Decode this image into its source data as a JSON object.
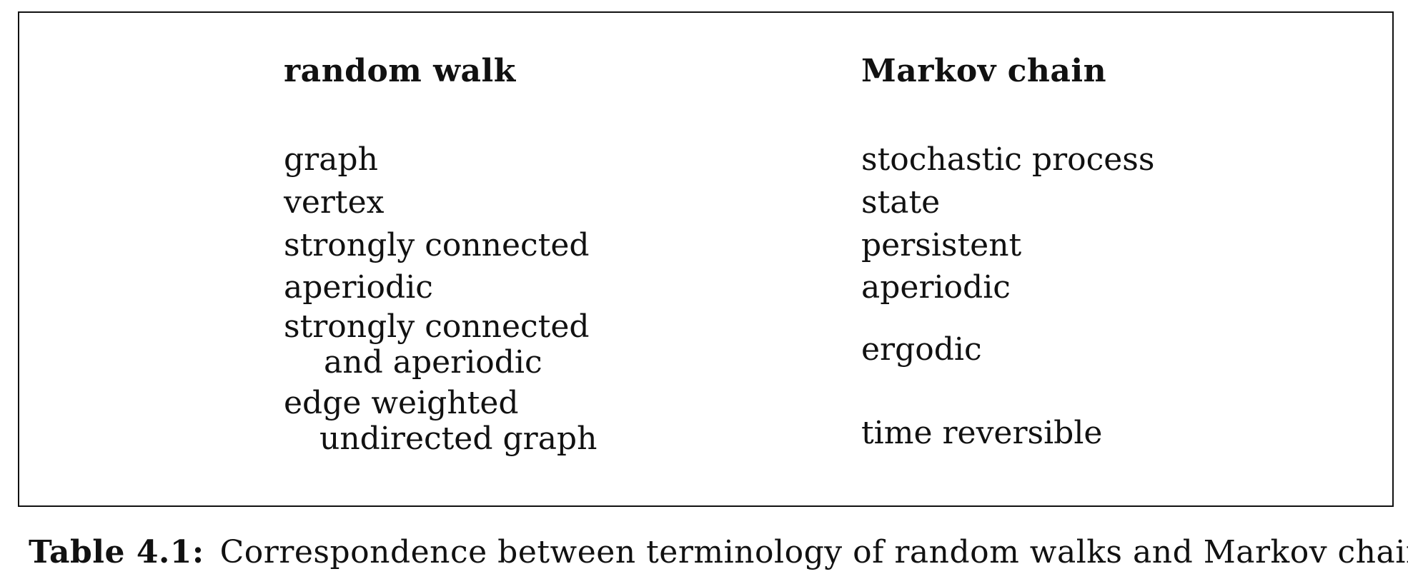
{
  "table": {
    "columns": [
      "random walk",
      "Markov chain"
    ],
    "rows": [
      {
        "random_walk": [
          "graph"
        ],
        "markov_chain": "stochastic process"
      },
      {
        "random_walk": [
          "vertex"
        ],
        "markov_chain": "state"
      },
      {
        "random_walk": [
          "strongly connected"
        ],
        "markov_chain": "persistent"
      },
      {
        "random_walk": [
          "aperiodic"
        ],
        "markov_chain": "aperiodic"
      },
      {
        "random_walk": [
          "strongly connected",
          "and aperiodic"
        ],
        "markov_chain": "ergodic"
      },
      {
        "random_walk": [
          "edge weighted",
          "undirected graph"
        ],
        "markov_chain": "time reversible"
      }
    ]
  },
  "caption": {
    "label": "Table 4.1:",
    "text": "Correspondence between terminology of random walks and Markov chains"
  }
}
